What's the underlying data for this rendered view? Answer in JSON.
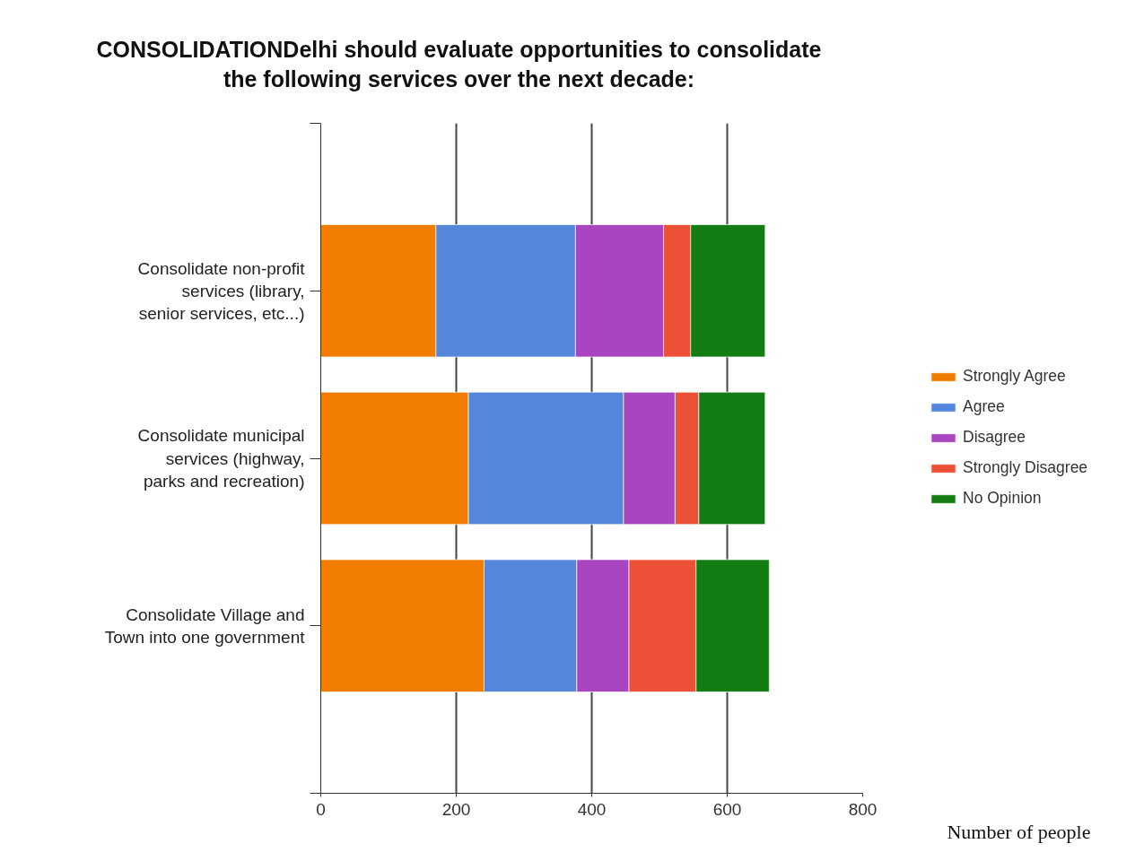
{
  "chart_data": {
    "type": "bar",
    "orientation": "horizontal",
    "stacked": true,
    "title": "CONSOLIDATIONDelhi should evaluate opportunities to consolidate the following services over the next decade:",
    "annotations": [
      "Number of people"
    ],
    "categories": [
      "Consolidate non-profit services (library, senior services, etc...)",
      "Consolidate municipal services (highway, parks and recreation)",
      "Consolidate Village and Town into one government"
    ],
    "series": [
      {
        "name": "Strongly Agree",
        "color": "#f07c00",
        "values": [
          170,
          218,
          241
        ]
      },
      {
        "name": "Agree",
        "color": "#5486dc",
        "values": [
          206,
          229,
          137
        ]
      },
      {
        "name": "Disagree",
        "color": "#aa45c2",
        "values": [
          130,
          76,
          77
        ]
      },
      {
        "name": "Strongly Disagree",
        "color": "#ec5137",
        "values": [
          40,
          35,
          99
        ]
      },
      {
        "name": "No Opinion",
        "color": "#137c13",
        "values": [
          110,
          98,
          108
        ]
      }
    ],
    "xlim": [
      0,
      800
    ],
    "xticks": [
      0,
      200,
      400,
      600,
      800
    ],
    "grid": "x",
    "legend": "right"
  }
}
